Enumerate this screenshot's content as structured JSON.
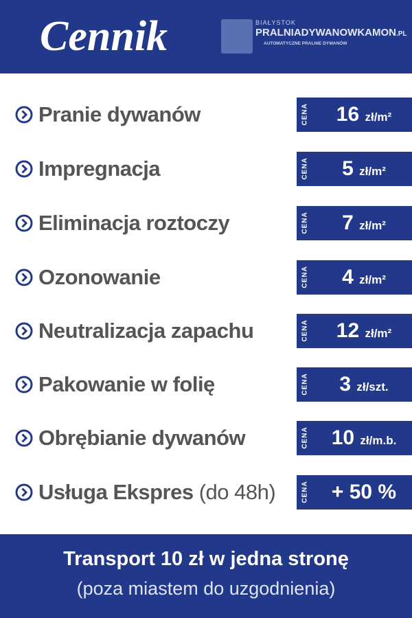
{
  "header": {
    "title": "Cennik",
    "logo": {
      "city": "BIAŁYSTOK",
      "name": "PRALNIADYWANOWKAMON",
      "tld": ".PL",
      "tagline": "AUTOMATYCZNE PRALNIE DYWANÓW"
    }
  },
  "items": [
    {
      "name": "Pranie dywanów",
      "label": "CENA",
      "price": "16",
      "unit": "zł/m²"
    },
    {
      "name": "Impregnacja",
      "label": "CENA",
      "price": "5",
      "unit": "zł/m²"
    },
    {
      "name": "Eliminacja roztoczy",
      "label": "CENA",
      "price": "7",
      "unit": "zł/m²"
    },
    {
      "name": "Ozonowanie",
      "label": "CENA",
      "price": "4",
      "unit": "zł/m²"
    },
    {
      "name": "Neutralizacja zapachu",
      "label": "CENA",
      "price": "12",
      "unit": "zł/m²"
    },
    {
      "name": "Pakowanie w folię",
      "label": "CENA",
      "price": "3",
      "unit": "zł/szt."
    },
    {
      "name": "Obrębianie dywanów",
      "label": "CENA",
      "price": "10",
      "unit": "zł/m.b."
    },
    {
      "name": "Usługa Ekspres",
      "note": "(do 48h)",
      "label": "CENA",
      "price": "+ 50 %"
    }
  ],
  "footer": {
    "line1": "Transport 10 zł w jedna stronę",
    "line2": "(poza miastem do uzgodnienia)"
  }
}
